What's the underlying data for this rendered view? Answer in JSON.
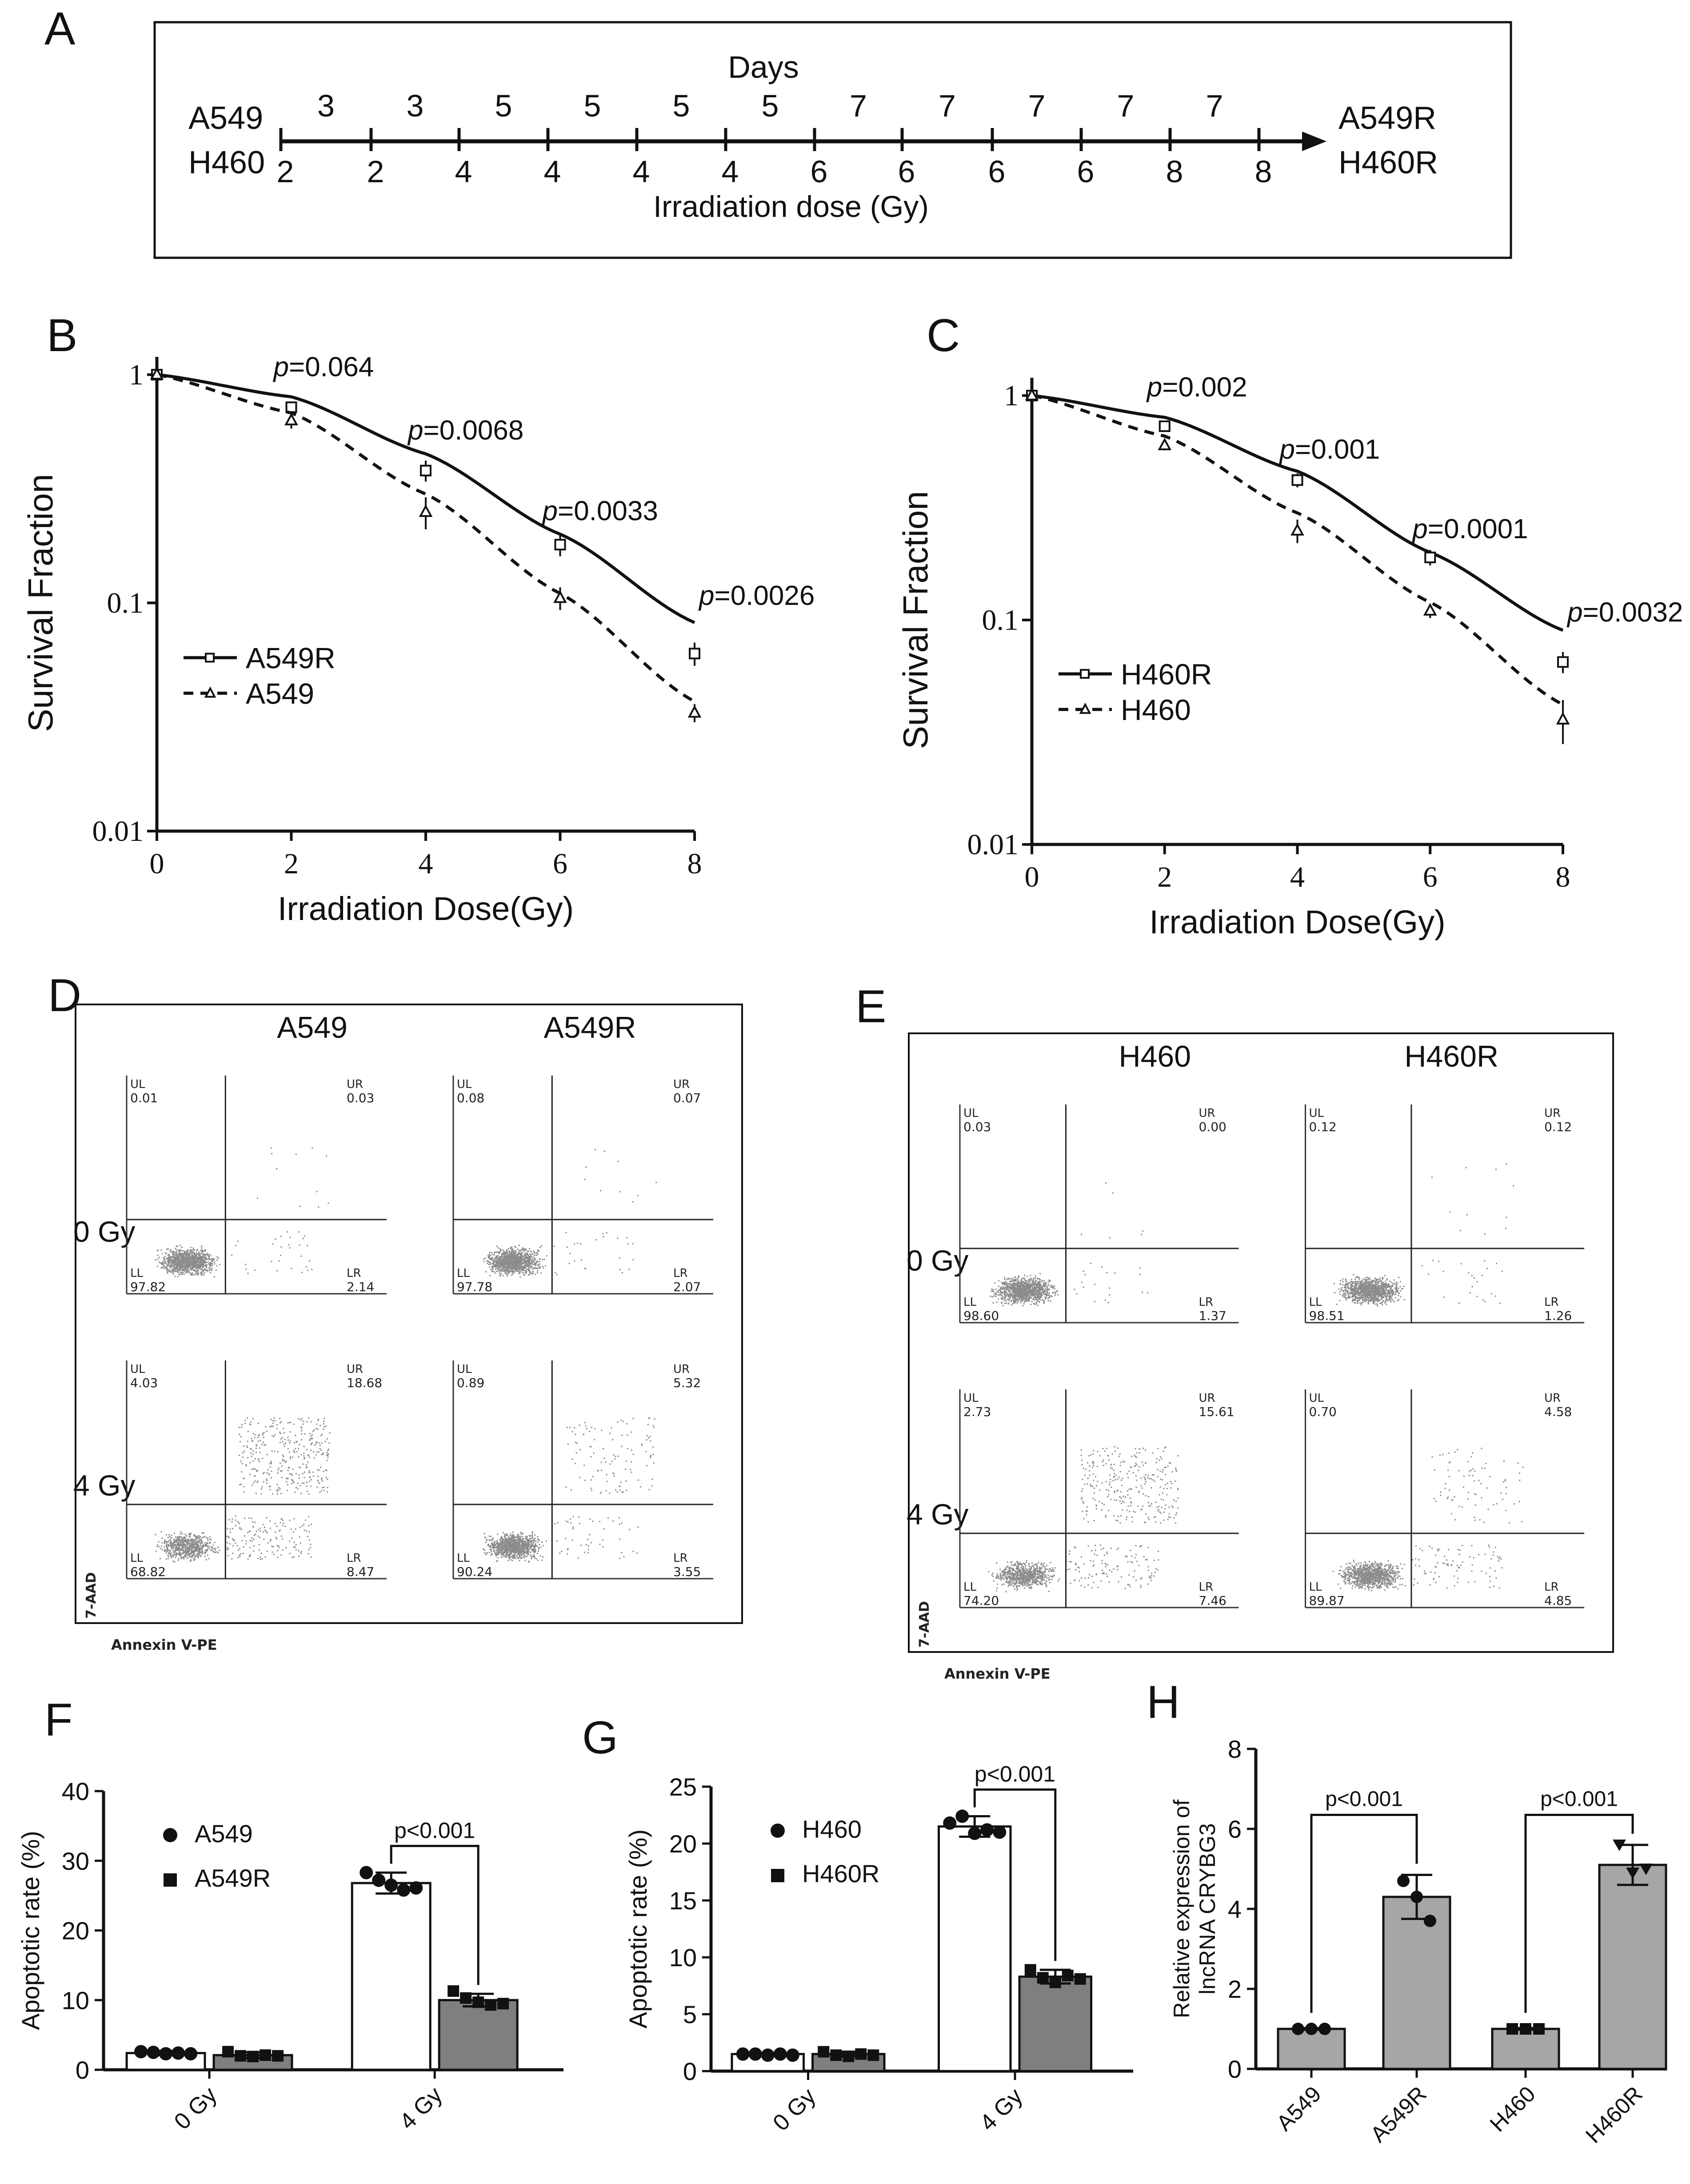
{
  "panel_labels": {
    "a": "A",
    "b": "B",
    "c": "C",
    "d": "D",
    "e": "E",
    "f": "F",
    "g": "G",
    "h": "H"
  },
  "panel_a": {
    "days_title": "Days",
    "left_labels": [
      "A549",
      "H460"
    ],
    "right_labels": [
      "A549R",
      "H460R"
    ],
    "days": [
      "3",
      "3",
      "5",
      "5",
      "5",
      "5",
      "7",
      "7",
      "7",
      "7",
      "7"
    ],
    "doses": [
      "2",
      "2",
      "4",
      "4",
      "4",
      "4",
      "6",
      "6",
      "6",
      "6",
      "8",
      "8"
    ],
    "xlabel": "Irradiation dose (Gy)"
  },
  "panel_b": {
    "legend": [
      "A549R",
      "A549"
    ],
    "p_prefix": "p",
    "p_values": [
      "=0.064",
      "=0.0068",
      "=0.0033",
      "=0.0026"
    ],
    "ylabel": "Survival Fraction",
    "xlabel": "Irradiation Dose(Gy)",
    "xticks": [
      "0",
      "2",
      "4",
      "6",
      "8"
    ],
    "yticks": [
      "1",
      "0.1",
      "0.01"
    ]
  },
  "panel_c": {
    "legend": [
      "H460R",
      "H460"
    ],
    "p_prefix": "p",
    "p_values": [
      "=0.002",
      "=0.001",
      "=0.0001",
      "=0.0032"
    ],
    "ylabel": "Survival Fraction",
    "xlabel": "Irradiation Dose(Gy)",
    "xticks": [
      "0",
      "2",
      "4",
      "6",
      "8"
    ],
    "yticks": [
      "1",
      "0.1",
      "0.01"
    ]
  },
  "panel_d": {
    "col_titles": [
      "A549",
      "A549R"
    ],
    "row_titles": [
      "0 Gy",
      "4 Gy"
    ],
    "y_axis": "7-AAD",
    "x_axis": "Annexin V-PE",
    "quad_names": [
      "UL",
      "UR",
      "LL",
      "LR"
    ],
    "plots": [
      {
        "UL": "0.01",
        "UR": "0.03",
        "LL": "97.82",
        "LR": "2.14"
      },
      {
        "UL": "0.08",
        "UR": "0.07",
        "LL": "97.78",
        "LR": "2.07"
      },
      {
        "UL": "4.03",
        "UR": "18.68",
        "LL": "68.82",
        "LR": "8.47"
      },
      {
        "UL": "0.89",
        "UR": "5.32",
        "LL": "90.24",
        "LR": "3.55"
      }
    ]
  },
  "panel_e": {
    "col_titles": [
      "H460",
      "H460R"
    ],
    "row_titles": [
      "0 Gy",
      "4 Gy"
    ],
    "y_axis": "7-AAD",
    "x_axis": "Annexin V-PE",
    "quad_names": [
      "UL",
      "UR",
      "LL",
      "LR"
    ],
    "plots": [
      {
        "UL": "0.03",
        "UR": "0.00",
        "LL": "98.60",
        "LR": "1.37"
      },
      {
        "UL": "0.12",
        "UR": "0.12",
        "LL": "98.51",
        "LR": "1.26"
      },
      {
        "UL": "2.73",
        "UR": "15.61",
        "LL": "74.20",
        "LR": "7.46"
      },
      {
        "UL": "0.70",
        "UR": "4.58",
        "LL": "89.87",
        "LR": "4.85"
      }
    ]
  },
  "panel_f": {
    "ylabel": "Apoptotic rate (%)",
    "legend": [
      "A549",
      "A549R"
    ],
    "p_label": "p<0.001",
    "yticks": [
      "0",
      "10",
      "20",
      "30",
      "40"
    ],
    "xticks": [
      "0 Gy",
      "4 Gy"
    ]
  },
  "panel_g": {
    "ylabel": "Apoptotic rate (%)",
    "legend": [
      "H460",
      "H460R"
    ],
    "p_label": "p<0.001",
    "yticks": [
      "0",
      "5",
      "10",
      "15",
      "20",
      "25"
    ],
    "xticks": [
      "0 Gy",
      "4 Gy"
    ]
  },
  "panel_h": {
    "ylabel_lines": [
      "Relative expression of",
      "lncRNA CRYBG3"
    ],
    "p_labels": [
      "p<0.001",
      "p<0.001"
    ],
    "yticks": [
      "0",
      "2",
      "4",
      "6",
      "8"
    ],
    "xticks": [
      "A549",
      "A549R",
      "H460",
      "H460R"
    ]
  },
  "chart_data": [
    {
      "type": "line",
      "id": "B",
      "title": "",
      "xlabel": "Irradiation Dose(Gy)",
      "ylabel": "Survival Fraction",
      "yscale": "log",
      "ylim": [
        0.01,
        1
      ],
      "xlim": [
        0,
        8
      ],
      "x": [
        0,
        2,
        4,
        6,
        8
      ],
      "series": [
        {
          "name": "A549R",
          "values": [
            1.0,
            0.72,
            0.38,
            0.18,
            0.06
          ],
          "errors": [
            0.02,
            0.04,
            0.04,
            0.02,
            0.007
          ],
          "fit": [
            1.0,
            0.8,
            0.45,
            0.2,
            0.082
          ]
        },
        {
          "name": "A549",
          "values": [
            1.0,
            0.63,
            0.25,
            0.105,
            0.033
          ],
          "errors": [
            0.02,
            0.05,
            0.04,
            0.012,
            0.003
          ],
          "fit": [
            1.0,
            0.68,
            0.3,
            0.11,
            0.037
          ]
        }
      ]
    },
    {
      "type": "line",
      "id": "C",
      "title": "",
      "xlabel": "Irradiation Dose(Gy)",
      "ylabel": "Survival Fraction",
      "yscale": "log",
      "ylim": [
        0.01,
        1
      ],
      "xlim": [
        0,
        8
      ],
      "x": [
        0,
        2,
        4,
        6,
        8
      ],
      "series": [
        {
          "name": "H460R",
          "values": [
            1.0,
            0.73,
            0.42,
            0.19,
            0.065
          ],
          "errors": [
            0.02,
            0.03,
            0.03,
            0.015,
            0.007
          ],
          "fit": [
            1.0,
            0.8,
            0.46,
            0.2,
            0.09
          ]
        },
        {
          "name": "H460",
          "values": [
            1.0,
            0.6,
            0.25,
            0.11,
            0.036
          ],
          "errors": [
            0.02,
            0.03,
            0.03,
            0.008,
            0.008
          ],
          "fit": [
            1.0,
            0.66,
            0.3,
            0.12,
            0.042
          ]
        }
      ]
    },
    {
      "type": "bar",
      "id": "F",
      "categories": [
        "0 Gy",
        "4 Gy"
      ],
      "ylabel": "Apoptotic rate (%)",
      "ylim": [
        0,
        40
      ],
      "series": [
        {
          "name": "A549",
          "values": [
            2.4,
            26.8
          ],
          "errors": [
            0.3,
            1.5
          ],
          "points": [
            [
              2.6,
              2.5,
              2.3,
              2.4,
              2.3
            ],
            [
              28.3,
              27.2,
              26.5,
              25.8,
              26.1
            ]
          ]
        },
        {
          "name": "A549R",
          "values": [
            2.1,
            10.0
          ],
          "errors": [
            0.4,
            0.9
          ],
          "points": [
            [
              2.6,
              2.0,
              1.9,
              2.1,
              2.0
            ],
            [
              11.3,
              10.3,
              9.7,
              9.3,
              9.5
            ]
          ]
        }
      ]
    },
    {
      "type": "bar",
      "id": "G",
      "categories": [
        "0 Gy",
        "4 Gy"
      ],
      "ylabel": "Apoptotic rate (%)",
      "ylim": [
        0,
        25
      ],
      "series": [
        {
          "name": "H460",
          "values": [
            1.5,
            21.5
          ],
          "errors": [
            0.1,
            0.9
          ],
          "points": [
            [
              1.5,
              1.5,
              1.4,
              1.5,
              1.4
            ],
            [
              21.8,
              22.4,
              20.9,
              21.2,
              21.0
            ]
          ]
        },
        {
          "name": "H460R",
          "values": [
            1.5,
            8.3
          ],
          "errors": [
            0.2,
            0.6
          ],
          "points": [
            [
              1.7,
              1.4,
              1.3,
              1.5,
              1.4
            ],
            [
              8.9,
              8.2,
              7.8,
              8.4,
              8.1
            ]
          ]
        }
      ]
    },
    {
      "type": "bar",
      "id": "H",
      "categories": [
        "A549",
        "A549R",
        "H460",
        "H460R"
      ],
      "ylabel": "Relative expression of lncRNA CRYBG3",
      "ylim": [
        0,
        8
      ],
      "values": [
        1.0,
        4.3,
        1.0,
        5.1
      ],
      "errors": [
        0.02,
        0.55,
        0.02,
        0.5
      ],
      "points": [
        [
          1.0,
          1.0,
          1.0
        ],
        [
          4.7,
          4.3,
          3.7
        ],
        [
          1.0,
          1.0,
          1.0
        ],
        [
          5.6,
          4.9,
          5.0
        ]
      ]
    }
  ]
}
